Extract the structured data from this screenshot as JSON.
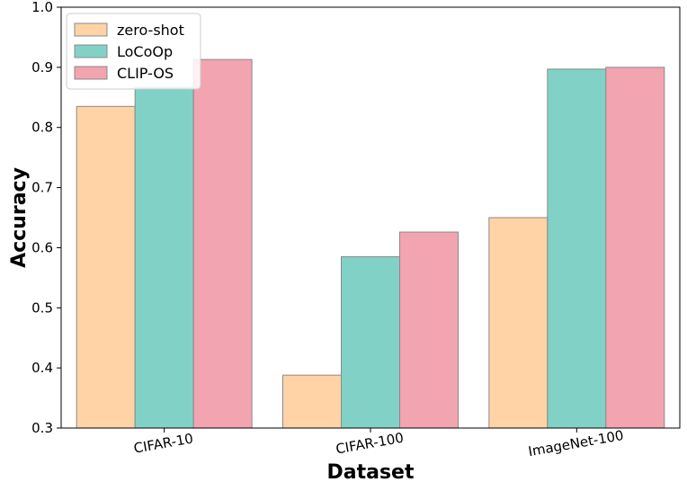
{
  "chart_data": {
    "type": "bar",
    "title": "",
    "xlabel": "Dataset",
    "ylabel": "Accuracy",
    "categories": [
      "CIFAR-10",
      "CIFAR-100",
      "ImageNet-100"
    ],
    "series": [
      {
        "name": "zero-shot",
        "color": "#FFD3A5",
        "values": [
          0.835,
          0.388,
          0.65
        ]
      },
      {
        "name": "LoCoOp",
        "color": "#82D1C7",
        "values": [
          0.867,
          0.585,
          0.897
        ]
      },
      {
        "name": "CLIP-OS",
        "color": "#F2A4B0",
        "values": [
          0.913,
          0.626,
          0.9
        ]
      }
    ],
    "ylim": [
      0.3,
      1.0
    ],
    "yticks": [
      "0.3",
      "0.4",
      "0.5",
      "0.6",
      "0.7",
      "0.8",
      "0.9",
      "1.0"
    ],
    "grid": false,
    "legend_position": "top-left",
    "bar_edge_color": "#8a8a8a",
    "xtick_rotation_deg": -10
  }
}
